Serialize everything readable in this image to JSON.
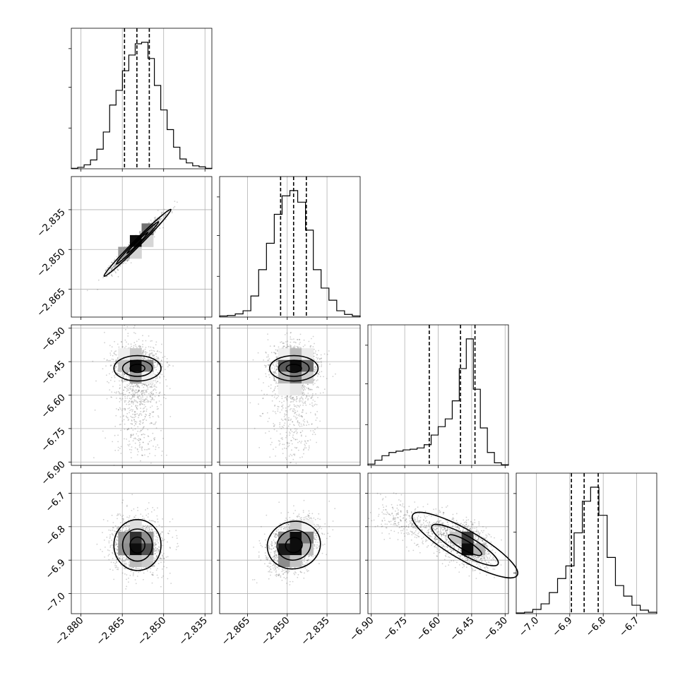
{
  "chart_data": {
    "type": "corner",
    "parameters": [
      {
        "range": [
          -2.8835,
          -2.8325
        ],
        "ticks": [
          -2.88,
          -2.865,
          -2.85,
          -2.835
        ],
        "tick_labels": [
          "−2.880",
          "−2.865",
          "−2.850",
          "−2.835"
        ],
        "mean": -2.8595,
        "sd": 0.0045,
        "quantiles": [
          -2.8642,
          -2.8597,
          -2.8552
        ]
      },
      {
        "range": [
          -2.8755,
          -2.8225
        ],
        "ticks": [
          -2.865,
          -2.85,
          -2.835
        ],
        "tick_labels": [
          "−2.865",
          "−2.850",
          "−2.835"
        ],
        "mean": -2.8475,
        "sd": 0.0048,
        "quantiles": [
          -2.8525,
          -2.8476,
          -2.8428
        ]
      },
      {
        "range": [
          -6.915,
          -6.285
        ],
        "ticks": [
          -6.9,
          -6.75,
          -6.6,
          -6.45,
          -6.3
        ],
        "tick_labels": [
          "−6.90",
          "−6.75",
          "−6.60",
          "−6.45",
          "−6.30"
        ],
        "mean": -6.45,
        "sd": 0.03,
        "quantiles": [
          -6.64,
          -6.5,
          -6.435
        ]
      },
      {
        "range": [
          -7.06,
          -6.64
        ],
        "ticks": [
          -7.0,
          -6.9,
          -6.8,
          -6.7
        ],
        "tick_labels": [
          "−7.0",
          "−6.9",
          "−6.8",
          "−6.7"
        ],
        "mean": -6.855,
        "sd": 0.04,
        "quantiles": [
          -6.895,
          -6.857,
          -6.815
        ]
      }
    ],
    "histograms": [
      {
        "counts": [
          1,
          3,
          8,
          18,
          40,
          75,
          130,
          160,
          200,
          232,
          255,
          258,
          225,
          170,
          120,
          80,
          44,
          20,
          12,
          6,
          4,
          1
        ]
      },
      {
        "counts": [
          2,
          3,
          6,
          12,
          40,
          90,
          140,
          195,
          230,
          240,
          218,
          165,
          90,
          55,
          32,
          12,
          5,
          2
        ]
      },
      {
        "counts": [
          2,
          8,
          15,
          20,
          22,
          24,
          25,
          27,
          32,
          47,
          60,
          72,
          100,
          150,
          196,
          118,
          58,
          20,
          4,
          1
        ]
      },
      {
        "counts": [
          1,
          2,
          6,
          14,
          30,
          50,
          68,
          115,
          160,
          180,
          140,
          80,
          40,
          25,
          12,
          5,
          2
        ]
      }
    ],
    "correlations": [
      {
        "row": 1,
        "col": 0,
        "rho": 0.96
      },
      {
        "row": 2,
        "col": 0,
        "rho": 0.0
      },
      {
        "row": 2,
        "col": 1,
        "rho": 0.0
      },
      {
        "row": 3,
        "col": 0,
        "rho": 0.0
      },
      {
        "row": 3,
        "col": 1,
        "rho": 0.35
      },
      {
        "row": 3,
        "col": 2,
        "rho": -0.65
      }
    ],
    "grid": true
  }
}
